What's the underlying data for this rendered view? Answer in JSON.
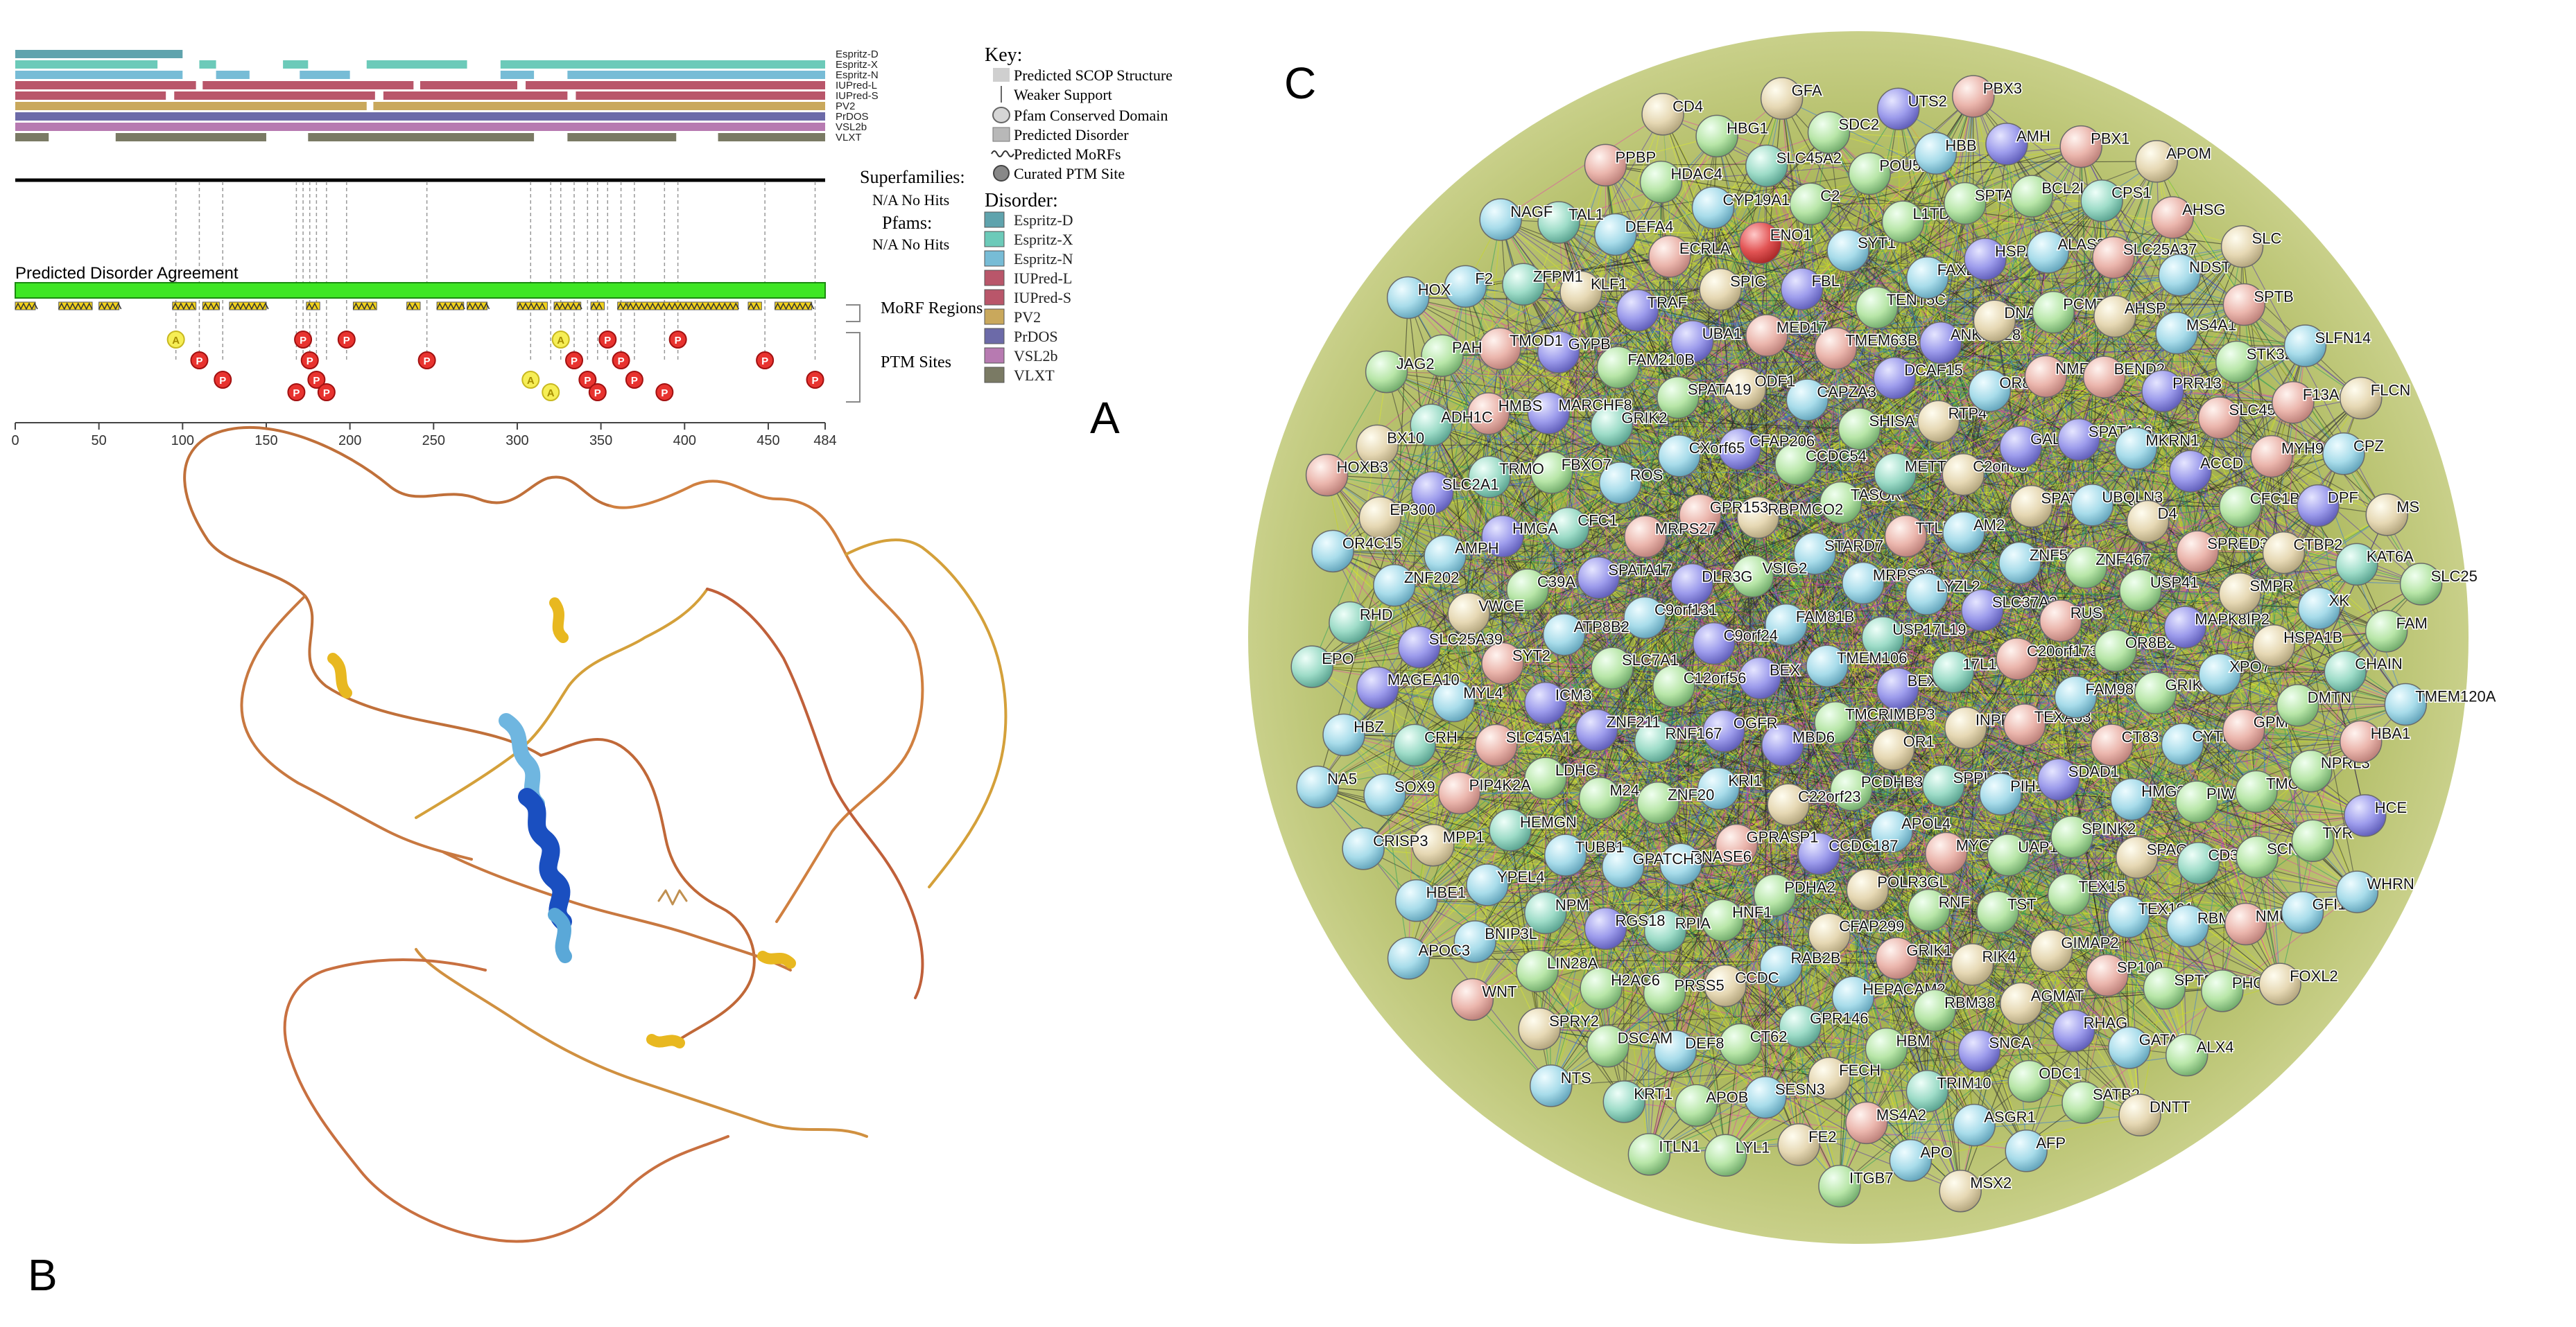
{
  "panel_labels": {
    "a": "A",
    "b": "B",
    "c": "C"
  },
  "panel_a": {
    "disorder_tracks": [
      {
        "name": "Espritz-D",
        "color": "#5fa3ad"
      },
      {
        "name": "Espritz-X",
        "color": "#6ccab9"
      },
      {
        "name": "Espritz-N",
        "color": "#77bcd6"
      },
      {
        "name": "IUPred-L",
        "color": "#b9566a"
      },
      {
        "name": "IUPred-S",
        "color": "#b9566a"
      },
      {
        "name": "PV2",
        "color": "#c9a85c"
      },
      {
        "name": "PrDOS",
        "color": "#6c6aa8"
      },
      {
        "name": "VSL2b",
        "color": "#b77ab1"
      },
      {
        "name": "VLXT",
        "color": "#7a7a64"
      }
    ],
    "superfamilies_label": "Superfamilies:",
    "superfamilies_value": "N/A No Hits",
    "pfams_label": "Pfams:",
    "pfams_value": "N/A No Hits",
    "agreement_label": "Predicted Disorder Agreement",
    "morf_label": "MoRF Regions",
    "ptm_label": "PTM Sites",
    "axis": {
      "min": 0,
      "max": 484,
      "ticks": [
        0,
        50,
        100,
        150,
        200,
        250,
        300,
        350,
        400,
        450,
        484
      ]
    },
    "ptm_sites": [
      {
        "pos": 96,
        "type": "A"
      },
      {
        "pos": 110,
        "type": "P"
      },
      {
        "pos": 124,
        "type": "P"
      },
      {
        "pos": 168,
        "type": "P"
      },
      {
        "pos": 172,
        "type": "P"
      },
      {
        "pos": 176,
        "type": "P"
      },
      {
        "pos": 180,
        "type": "P"
      },
      {
        "pos": 186,
        "type": "P"
      },
      {
        "pos": 198,
        "type": "P"
      },
      {
        "pos": 246,
        "type": "P"
      },
      {
        "pos": 308,
        "type": "A"
      },
      {
        "pos": 320,
        "type": "A"
      },
      {
        "pos": 326,
        "type": "A"
      },
      {
        "pos": 334,
        "type": "P"
      },
      {
        "pos": 342,
        "type": "P"
      },
      {
        "pos": 348,
        "type": "P"
      },
      {
        "pos": 354,
        "type": "P"
      },
      {
        "pos": 362,
        "type": "P"
      },
      {
        "pos": 370,
        "type": "P"
      },
      {
        "pos": 388,
        "type": "P"
      },
      {
        "pos": 396,
        "type": "P"
      },
      {
        "pos": 448,
        "type": "P"
      },
      {
        "pos": 478,
        "type": "P"
      }
    ],
    "key_title": "Key:",
    "key_items": [
      "Predicted SCOP Structure",
      "Weaker Support",
      "Pfam Conserved Domain",
      "Predicted Disorder",
      "Predicted MoRFs",
      "Curated PTM Site"
    ],
    "disorder_title": "Disorder:",
    "disorder_legend": [
      "Espritz-D",
      "Espritz-X",
      "Espritz-N",
      "IUPred-L",
      "IUPred-S",
      "PV2",
      "PrDOS",
      "VSL2b",
      "VLXT"
    ]
  },
  "panel_c": {
    "node_labels": [
      "USP17L19",
      "TMEM106",
      "MRPS23",
      "BEX5",
      "FAM81B",
      "LYZL2",
      "TMCRIMBP3",
      "STARD7",
      "17L15",
      "BEX",
      "TTLL2",
      "OR1",
      "VSIG2",
      "SLC37A2",
      "MBD6",
      "TASOR",
      "INPP1",
      "C9orf24",
      "AM2",
      "PCDHB3",
      "RBPMCO2",
      "C20orf173",
      "OGFR",
      "METTL15",
      "SPPL2B",
      "DLR3G",
      "ZNF540",
      "C22orf23",
      "CCDC54",
      "TEXA33",
      "C12orf56",
      "C2orf88",
      "APOL4",
      "GPR153",
      "RUS",
      "KRI1",
      "SHISA7",
      "PIH1D2",
      "C9orf131",
      "SPATC1",
      "CCDC187",
      "CFAP206",
      "FAM98B",
      "RNF167",
      "RTP4",
      "MYCT1",
      "MRPS27",
      "ZNF467",
      "GPRASP1",
      "CAPZA3",
      "SDAD1",
      "SLC7A1",
      "GALNTL5",
      "POLR3GL",
      "CXorf65",
      "OR8B2",
      "ZNF20",
      "DCAF15",
      "UAP1L1",
      "SPATA17",
      "UBQLN3",
      "PDHA2",
      "ODF1",
      "CT83",
      "ZNF211",
      "OR8B3",
      "RNF",
      "ROS",
      "USP41",
      "RNASE6",
      "TMEM63B",
      "SPINK2",
      "ATP8B2",
      "SPATA16",
      "CFAP299",
      "SPATA19",
      "GRIK3",
      "M24",
      "ANKRD28",
      "TST",
      "CFC1",
      "D4",
      "HNF1",
      "MED17",
      "HMG20A",
      "ICM3",
      "NME8",
      "GRIK1",
      "GRIK2",
      "MAPK8IP2",
      "GPATCH3",
      "TENT5C",
      "TEX15",
      "C39A",
      "MKRN1",
      "RAB2B",
      "UBA1",
      "CYTL1",
      "LDHC",
      "DNA",
      "RIK4",
      "FBXO7",
      "SPRED3",
      "RPIA",
      "FBL",
      "SPAG4",
      "SYT2",
      "BEND2",
      "HEPACAM2",
      "FAM210B",
      "XPO7",
      "TUBB1",
      "FAXDC2",
      "GIMAP2",
      "HMGA",
      "ACCD",
      "CCDC",
      "SPIC",
      "PIWIL2",
      "SLC45A1",
      "PCMTD1",
      "RBM38",
      "MARCHF8",
      "SMPR",
      "RGS18",
      "SYT1",
      "TEX101",
      "VWCE",
      "PRR13",
      "GPR146",
      "TRAF",
      "GPM",
      "HEMGN",
      "HSPA8",
      "AGMAT",
      "TRMO",
      "CFC1B",
      "PRSS5",
      "ENO1",
      "CD3D",
      "MYL4",
      "AHSP",
      "HBM",
      "GYPB",
      "HSPA1B",
      "NPM",
      "L1TD1",
      "SP100",
      "AMPH",
      "SLC45A4",
      "CT62",
      "ECRLA",
      "TMCC2",
      "PIP4K2A",
      "ALAS2",
      "SNCA",
      "HMBS",
      "CTBP2",
      "H2AC6",
      "C2",
      "RBM46",
      "SLC25A39",
      "MS4A1",
      "FECH",
      "KLF1",
      "DMTN",
      "YPEL4",
      "SPTA1",
      "RHAG",
      "SLC2A1",
      "MYH9",
      "DEF8",
      "CYP19A1",
      "SCN3B",
      "CRH",
      "SLC25A37",
      "TRIM10",
      "TMOD1",
      "XK",
      "LIN28A",
      "POU5F1",
      "SPTSSB",
      "ZNF202",
      "STK32",
      "SESN3",
      "DEFA4",
      "NPRL3",
      "MPP1",
      "BCL2L1",
      "ODC1",
      "ADH1C",
      "DPF",
      "DSCAM",
      "SLC45A2",
      "NMUR1",
      "MAGEA10",
      "NDST",
      "MS4A2",
      "ZFPM1",
      "CHAIN",
      "BNIP3L",
      "HBB",
      "GATA2",
      "EP300",
      "F13A1",
      "APOB",
      "HDAC4",
      "TYR",
      "SOX9",
      "CPS1",
      "ASGR1",
      "PAH",
      "KAT6A",
      "SPRY2",
      "SDC2",
      "PHOS",
      "RHD",
      "SPTB",
      "FE2",
      "TAL1",
      "HBA1",
      "HBE1",
      "AMH",
      "SATB2",
      "BX10",
      "CPZ",
      "KRT1",
      "HBG1",
      "GFI1B",
      "HBZ",
      "AHSG",
      "APO",
      "F2",
      "FAM",
      "WNT",
      "UTS2",
      "ALX4",
      "OR4C15",
      "SLFN14",
      "LYL1",
      "PPBP",
      "HCE",
      "CRISP3",
      "PBX1",
      "AFP",
      "JAG2",
      "MS",
      "NTS",
      "GFA",
      "FOXL2",
      "EPO",
      "SLC",
      "ITGB7",
      "NAGF",
      "TMEM120A",
      "APOC3",
      "PBX3",
      "DNTT",
      "HOXB3",
      "FLCN",
      "ITLN1",
      "CD4",
      "WHRN",
      "NA5",
      "APOM",
      "MSX2",
      "HOX",
      "SLC25"
    ]
  }
}
